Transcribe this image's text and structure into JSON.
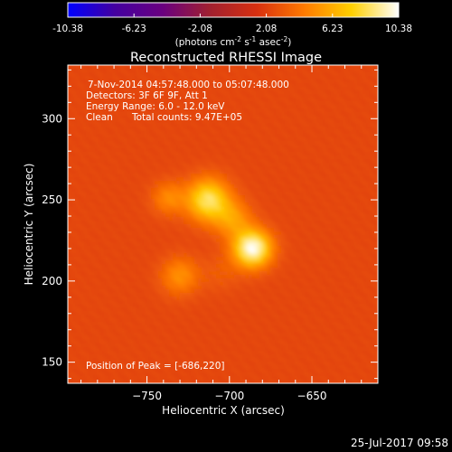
{
  "colorbar": {
    "ticks": [
      "-10.38",
      "-6.23",
      "-2.08",
      "2.08",
      "6.23",
      "10.38"
    ],
    "units_main": "(photons cm",
    "units_sup1": "-2",
    "units_mid": " s",
    "units_sup2": "-1",
    "units_end": " asec",
    "units_sup3": "-2",
    "units_close": ")",
    "colormap": [
      "#0000ff",
      "#4400a0",
      "#6a0080",
      "#a02030",
      "#d83010",
      "#ff7a00",
      "#ffd000",
      "#ffffff"
    ]
  },
  "chart_data": {
    "type": "heatmap",
    "title": "Reconstructed RHESSI Image",
    "xlabel": "Heliocentric X (arcsec)",
    "ylabel": "Heliocentric Y (arcsec)",
    "xlim": [
      -798,
      -610
    ],
    "ylim": [
      137,
      333
    ],
    "x_ticks": [
      -750,
      -700,
      -650
    ],
    "x_tick_labels": [
      "−750",
      "−700",
      "−650"
    ],
    "y_ticks": [
      150,
      200,
      250,
      300
    ],
    "y_tick_labels": [
      "150",
      "200",
      "250",
      "300"
    ],
    "value_range": [
      -10.38,
      10.38
    ],
    "background_level": 2.4,
    "sources": [
      {
        "x": -713,
        "y": 250,
        "amplitude": 6.2,
        "sigma": 9
      },
      {
        "x": -686,
        "y": 220,
        "amplitude": 8.0,
        "sigma": 8
      },
      {
        "x": -698,
        "y": 238,
        "amplitude": 3.0,
        "sigma": 8
      },
      {
        "x": -737,
        "y": 251,
        "amplitude": 2.5,
        "sigma": 7
      },
      {
        "x": -730,
        "y": 203,
        "amplitude": 2.8,
        "sigma": 8
      },
      {
        "x": -705,
        "y": 205,
        "amplitude": 0.8,
        "sigma": 8
      }
    ],
    "annotations": {
      "time": "7-Nov-2014 04:57:48.000 to 05:07:48.000",
      "detectors": "Detectors: 3F 6F 9F, Att 1",
      "energy": "Energy Range: 6.0 - 12.0 keV",
      "clean": "Clean",
      "counts": "Total counts: 9.47E+05",
      "peak": "Position of Peak = [-686,220]"
    }
  },
  "footer": {
    "date": "25-Jul-2017 09:58"
  }
}
